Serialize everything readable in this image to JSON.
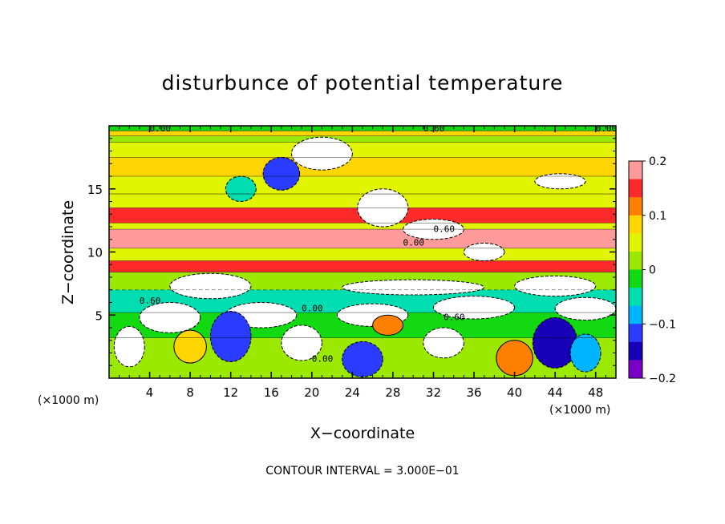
{
  "chart_data": {
    "type": "heatmap",
    "title": "disturbunce of potential temperature",
    "xlabel": "X−coordinate",
    "ylabel": "Z−coordinate",
    "x_unit": "(×1000 m)",
    "z_unit": "(×1000 m)",
    "xlim": [
      0,
      50
    ],
    "ylim": [
      0,
      20
    ],
    "x_ticks": [
      4,
      8,
      12,
      16,
      20,
      24,
      28,
      32,
      36,
      40,
      44,
      48
    ],
    "y_ticks": [
      5,
      10,
      15
    ],
    "colorbar": {
      "range": [
        -0.2,
        0.2
      ],
      "ticks": [
        0.2,
        0.1,
        0,
        -0.1,
        -0.2
      ],
      "tick_labels": [
        "0.2",
        "0.1",
        "0",
        "−0.1",
        "−0.2"
      ],
      "colors": [
        "#ff9a9a",
        "#ff2a2a",
        "#ff7f00",
        "#ffd500",
        "#e2f500",
        "#9be800",
        "#12d912",
        "#00ddb0",
        "#00b4ff",
        "#2a3cff",
        "#1800b8",
        "#7a00c8"
      ]
    },
    "footer": "CONTOUR INTERVAL = 3.000E−01",
    "contour_labels": [
      "0.00",
      "0.60"
    ],
    "bands": [
      {
        "z0": 19.6,
        "z1": 20.0,
        "value": -0.02
      },
      {
        "z0": 19.2,
        "z1": 19.6,
        "value": 0.08
      },
      {
        "z0": 18.7,
        "z1": 19.2,
        "value": 0.03
      },
      {
        "z0": 17.5,
        "z1": 18.7,
        "value": 0.06
      },
      {
        "z0": 16.0,
        "z1": 17.5,
        "value": 0.075
      },
      {
        "z0": 14.6,
        "z1": 16.0,
        "value": 0.035
      },
      {
        "z0": 13.5,
        "z1": 14.6,
        "value": 0.045
      },
      {
        "z0": 12.3,
        "z1": 13.5,
        "value": 0.16
      },
      {
        "z0": 11.8,
        "z1": 12.3,
        "value": 0.06
      },
      {
        "z0": 10.3,
        "z1": 11.8,
        "value": 0.2
      },
      {
        "z0": 9.3,
        "z1": 10.3,
        "value": 0.035
      },
      {
        "z0": 8.4,
        "z1": 9.3,
        "value": 0.15
      },
      {
        "z0": 7.0,
        "z1": 8.4,
        "value": 0.02
      },
      {
        "z0": 5.2,
        "z1": 7.0,
        "value": -0.04
      },
      {
        "z0": 3.2,
        "z1": 5.2,
        "value": 0.0
      },
      {
        "z0": 0.0,
        "z1": 3.2,
        "value": 0.02
      }
    ],
    "blobs": [
      {
        "x": 21,
        "z": 17.8,
        "rx": 3.0,
        "rz": 1.3,
        "value": -0.3
      },
      {
        "x": 27,
        "z": 13.5,
        "rx": 2.5,
        "rz": 1.5,
        "value": -0.3
      },
      {
        "x": 32,
        "z": 11.8,
        "rx": 3.0,
        "rz": 0.8,
        "value": -0.3
      },
      {
        "x": 44.5,
        "z": 15.6,
        "rx": 2.5,
        "rz": 0.6,
        "value": -0.3
      },
      {
        "x": 37,
        "z": 10.0,
        "rx": 2.0,
        "rz": 0.7,
        "value": -0.3
      },
      {
        "x": 10,
        "z": 7.3,
        "rx": 4.0,
        "rz": 1.0,
        "value": -0.3
      },
      {
        "x": 30,
        "z": 7.2,
        "rx": 7.0,
        "rz": 0.6,
        "value": -0.3
      },
      {
        "x": 44,
        "z": 7.3,
        "rx": 4.0,
        "rz": 0.8,
        "value": -0.3
      },
      {
        "x": 6,
        "z": 4.8,
        "rx": 3.0,
        "rz": 1.2,
        "value": -0.3
      },
      {
        "x": 15,
        "z": 5.0,
        "rx": 3.5,
        "rz": 1.0,
        "value": -0.3
      },
      {
        "x": 26,
        "z": 5.0,
        "rx": 3.5,
        "rz": 0.9,
        "value": -0.3
      },
      {
        "x": 36,
        "z": 5.6,
        "rx": 4.0,
        "rz": 0.9,
        "value": -0.3
      },
      {
        "x": 47,
        "z": 5.5,
        "rx": 3.0,
        "rz": 0.9,
        "value": -0.3
      },
      {
        "x": 2,
        "z": 2.5,
        "rx": 1.5,
        "rz": 1.6,
        "value": -0.3
      },
      {
        "x": 19,
        "z": 2.8,
        "rx": 2.0,
        "rz": 1.4,
        "value": -0.3
      },
      {
        "x": 33,
        "z": 2.8,
        "rx": 2.0,
        "rz": 1.2,
        "value": -0.3
      },
      {
        "x": 17,
        "z": 16.2,
        "rx": 1.8,
        "rz": 1.3,
        "value": -0.1
      },
      {
        "x": 13,
        "z": 15.0,
        "rx": 1.5,
        "rz": 1.0,
        "value": -0.06
      },
      {
        "x": 12,
        "z": 3.3,
        "rx": 2.0,
        "rz": 2.0,
        "value": -0.13
      },
      {
        "x": 25,
        "z": 1.5,
        "rx": 2.0,
        "rz": 1.4,
        "value": -0.1
      },
      {
        "x": 44,
        "z": 2.8,
        "rx": 2.2,
        "rz": 2.0,
        "value": -0.15
      },
      {
        "x": 40,
        "z": 1.6,
        "rx": 1.8,
        "rz": 1.4,
        "value": 0.12
      },
      {
        "x": 8,
        "z": 2.5,
        "rx": 1.6,
        "rz": 1.3,
        "value": 0.1
      },
      {
        "x": 27.5,
        "z": 4.2,
        "rx": 1.5,
        "rz": 0.8,
        "value": 0.13
      },
      {
        "x": 47,
        "z": 2.0,
        "rx": 1.5,
        "rz": 1.5,
        "value": -0.08
      }
    ]
  }
}
